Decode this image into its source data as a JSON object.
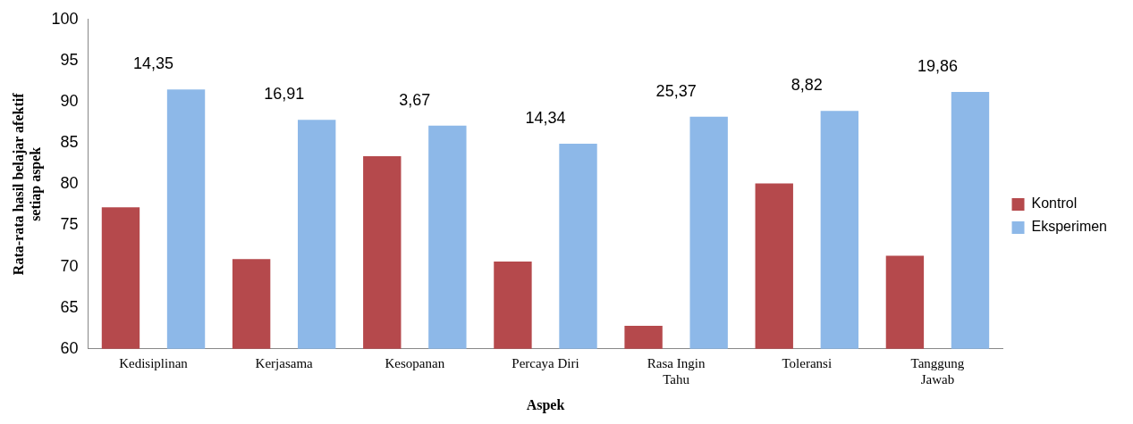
{
  "chart_data": {
    "type": "bar",
    "xlabel": "Aspek",
    "ylabel": "Rata-rata hasil belajar afektif setiap aspek",
    "categories": [
      "Kedisiplinan",
      "Kerjasama",
      "Kesopanan",
      "Percaya Diri",
      "Rasa Ingin Tahu",
      "Toleransi",
      "Tanggung Jawab"
    ],
    "series": [
      {
        "name": "Kontrol",
        "color": "#b5494c",
        "values": [
          77.2,
          70.9,
          83.4,
          70.6,
          62.8,
          80.1,
          71.3
        ]
      },
      {
        "name": "Eksperimen",
        "color": "#8db8e8",
        "values": [
          91.5,
          87.8,
          87.1,
          84.9,
          88.2,
          88.9,
          91.2
        ]
      }
    ],
    "ylim": [
      60,
      100
    ],
    "yticks": [
      60,
      65,
      70,
      75,
      80,
      85,
      90,
      95,
      100
    ],
    "grid": false,
    "legend": "right",
    "annotations": [
      "14,35",
      "16,91",
      "3,67",
      "14,34",
      "25,37",
      "8,82",
      "19,86"
    ]
  }
}
